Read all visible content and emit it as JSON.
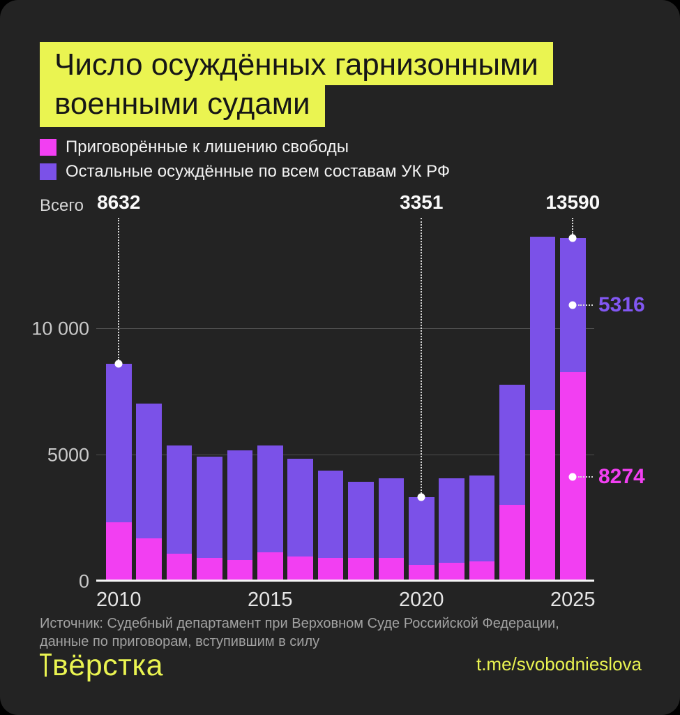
{
  "title": {
    "line1": "Число осуждённых гарнизонными",
    "line2": "военными судами"
  },
  "legend": [
    {
      "label": "Приговорённые к лишению свободы",
      "color": "#F23FF2"
    },
    {
      "label": "Остальные осуждённые по всем составам УК РФ",
      "color": "#7B51E8"
    }
  ],
  "annotations": {
    "total_label": "Всего"
  },
  "callouts": {
    "top": [
      {
        "year": 2010,
        "text": "8632"
      },
      {
        "year": 2020,
        "text": "3351"
      },
      {
        "year": 2025,
        "text": "13590"
      }
    ],
    "side": [
      {
        "year": 2025,
        "series": 1,
        "text": "5316",
        "color": "#8257F2"
      },
      {
        "year": 2025,
        "series": 0,
        "text": "8274",
        "color": "#F23FF2"
      }
    ]
  },
  "source": {
    "line1": "Источник: Судебный департамент при Верховном Суде Российской Федерации,",
    "line2": "данные по приговорам, вступившим в силу"
  },
  "footer": {
    "logo": "вёрстка",
    "link": "t.me/svobodnieslova"
  },
  "colors": {
    "background": "#232323",
    "accent_yellow": "#EAF451",
    "magenta": "#F23FF2",
    "purple": "#7B51E8",
    "side_purple_text": "#8257F2"
  },
  "chart_data": {
    "type": "bar",
    "stacked": true,
    "title": "Число осуждённых гарнизонными военными судами",
    "categories": [
      2010,
      2011,
      2012,
      2013,
      2014,
      2015,
      2016,
      2017,
      2018,
      2019,
      2020,
      2021,
      2022,
      2023,
      2024,
      2025
    ],
    "series": [
      {
        "name": "Приговорённые к лишению свободы",
        "color": "#F23FF2",
        "values": [
          2350,
          1700,
          1100,
          950,
          850,
          1150,
          1000,
          950,
          950,
          950,
          650,
          750,
          800,
          3050,
          6800,
          8274
        ]
      },
      {
        "name": "Остальные осуждённые по всем составам УК РФ",
        "color": "#7B51E8",
        "values": [
          6282,
          5350,
          4300,
          4000,
          4350,
          4250,
          3850,
          3450,
          3000,
          3150,
          2701,
          3350,
          3400,
          4750,
          6850,
          5316
        ]
      }
    ],
    "totals": [
      8632,
      7050,
      5400,
      4950,
      5200,
      5400,
      4850,
      4400,
      3950,
      4100,
      3351,
      4100,
      4200,
      7800,
      13650,
      13590
    ],
    "labeled_totals": {
      "2010": 8632,
      "2020": 3351,
      "2025": 13590
    },
    "labeled_2025_segments": {
      "prison": 8274,
      "other": 5316
    },
    "xlabel": "",
    "ylabel": "",
    "ylim": [
      0,
      14000
    ],
    "y_ticks": [
      {
        "label": "0",
        "value": 0
      },
      {
        "label": "5000",
        "value": 5000
      },
      {
        "label": "10 000",
        "value": 10000
      }
    ],
    "y_gridlines": [
      5000,
      10000
    ],
    "x_tick_years": [
      2010,
      2015,
      2020,
      2025
    ],
    "grid": true,
    "legend_position": "top-left"
  }
}
